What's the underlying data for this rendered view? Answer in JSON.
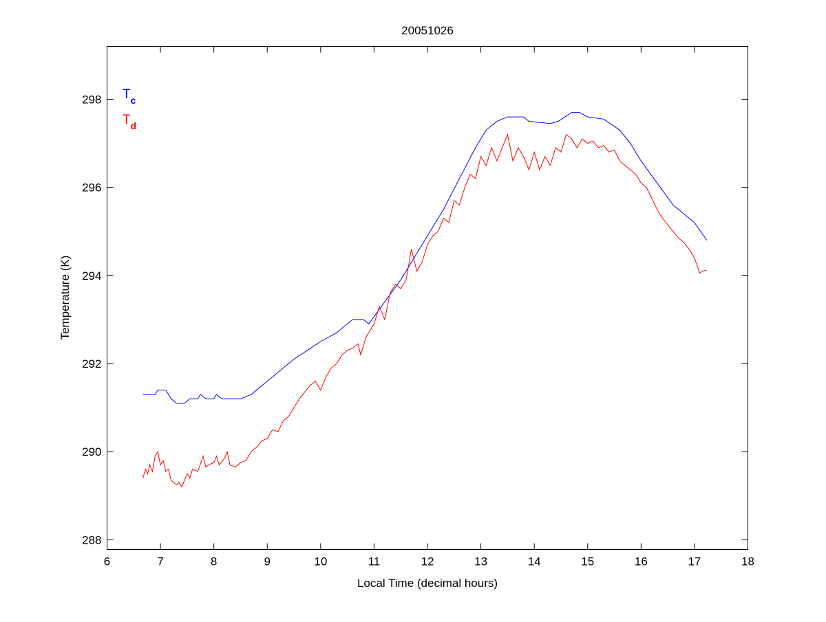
{
  "chart_data": {
    "type": "line",
    "title": "20051026",
    "xlabel": "Local Time (decimal hours)",
    "ylabel": "Temperature (K)",
    "xlim": [
      6,
      18
    ],
    "ylim": [
      287.78,
      299.2
    ],
    "xticks": [
      6,
      7,
      8,
      9,
      10,
      11,
      12,
      13,
      14,
      15,
      16,
      17,
      18
    ],
    "yticks": [
      288,
      290,
      292,
      294,
      296,
      298
    ],
    "grid": false,
    "legend_position": "top-left",
    "series": [
      {
        "name": "T",
        "subscript": "c",
        "color": "#0000ff",
        "points": [
          [
            6.67,
            291.3
          ],
          [
            6.9,
            291.3
          ],
          [
            6.95,
            291.4
          ],
          [
            7.1,
            291.4
          ],
          [
            7.2,
            291.2
          ],
          [
            7.3,
            291.1
          ],
          [
            7.45,
            291.1
          ],
          [
            7.55,
            291.2
          ],
          [
            7.7,
            291.2
          ],
          [
            7.75,
            291.3
          ],
          [
            7.85,
            291.2
          ],
          [
            8.0,
            291.2
          ],
          [
            8.05,
            291.3
          ],
          [
            8.15,
            291.2
          ],
          [
            8.5,
            291.2
          ],
          [
            8.7,
            291.3
          ],
          [
            9.0,
            291.6
          ],
          [
            9.3,
            291.9
          ],
          [
            9.5,
            292.1
          ],
          [
            9.75,
            292.3
          ],
          [
            10.0,
            292.5
          ],
          [
            10.3,
            292.7
          ],
          [
            10.5,
            292.9
          ],
          [
            10.6,
            293.0
          ],
          [
            10.8,
            293.0
          ],
          [
            10.9,
            292.9
          ],
          [
            11.2,
            293.4
          ],
          [
            11.5,
            293.9
          ],
          [
            11.8,
            294.5
          ],
          [
            12.1,
            295.1
          ],
          [
            12.3,
            295.5
          ],
          [
            12.6,
            296.2
          ],
          [
            12.9,
            296.9
          ],
          [
            13.1,
            297.3
          ],
          [
            13.3,
            297.5
          ],
          [
            13.5,
            297.6
          ],
          [
            13.8,
            297.6
          ],
          [
            13.9,
            297.5
          ],
          [
            14.3,
            297.45
          ],
          [
            14.45,
            297.5
          ],
          [
            14.7,
            297.7
          ],
          [
            14.85,
            297.7
          ],
          [
            15.0,
            297.6
          ],
          [
            15.3,
            297.55
          ],
          [
            15.6,
            297.3
          ],
          [
            15.8,
            297.0
          ],
          [
            16.0,
            296.6
          ],
          [
            16.3,
            296.1
          ],
          [
            16.6,
            295.6
          ],
          [
            17.0,
            295.2
          ],
          [
            17.23,
            294.8
          ]
        ]
      },
      {
        "name": "T",
        "subscript": "d",
        "color": "#ff0000",
        "points": [
          [
            6.67,
            289.4
          ],
          [
            6.72,
            289.6
          ],
          [
            6.76,
            289.5
          ],
          [
            6.8,
            289.7
          ],
          [
            6.85,
            289.55
          ],
          [
            6.9,
            289.9
          ],
          [
            6.95,
            290.0
          ],
          [
            7.0,
            289.7
          ],
          [
            7.05,
            289.8
          ],
          [
            7.1,
            289.55
          ],
          [
            7.15,
            289.6
          ],
          [
            7.2,
            289.35
          ],
          [
            7.3,
            289.25
          ],
          [
            7.35,
            289.3
          ],
          [
            7.4,
            289.2
          ],
          [
            7.5,
            289.5
          ],
          [
            7.55,
            289.4
          ],
          [
            7.6,
            289.6
          ],
          [
            7.7,
            289.55
          ],
          [
            7.8,
            289.9
          ],
          [
            7.85,
            289.65
          ],
          [
            7.9,
            289.7
          ],
          [
            8.0,
            289.75
          ],
          [
            8.05,
            289.9
          ],
          [
            8.1,
            289.7
          ],
          [
            8.2,
            289.85
          ],
          [
            8.25,
            290.0
          ],
          [
            8.3,
            289.7
          ],
          [
            8.4,
            289.65
          ],
          [
            8.5,
            289.75
          ],
          [
            8.6,
            289.8
          ],
          [
            8.7,
            290.0
          ],
          [
            8.8,
            290.1
          ],
          [
            8.9,
            290.25
          ],
          [
            9.0,
            290.3
          ],
          [
            9.1,
            290.5
          ],
          [
            9.2,
            290.45
          ],
          [
            9.3,
            290.7
          ],
          [
            9.4,
            290.8
          ],
          [
            9.5,
            291.0
          ],
          [
            9.6,
            291.2
          ],
          [
            9.7,
            291.35
          ],
          [
            9.8,
            291.5
          ],
          [
            9.9,
            291.6
          ],
          [
            10.0,
            291.4
          ],
          [
            10.1,
            291.7
          ],
          [
            10.2,
            291.9
          ],
          [
            10.3,
            292.0
          ],
          [
            10.4,
            292.2
          ],
          [
            10.5,
            292.3
          ],
          [
            10.6,
            292.35
          ],
          [
            10.7,
            292.45
          ],
          [
            10.75,
            292.2
          ],
          [
            10.85,
            292.6
          ],
          [
            11.0,
            292.9
          ],
          [
            11.1,
            293.3
          ],
          [
            11.2,
            293.0
          ],
          [
            11.3,
            293.6
          ],
          [
            11.4,
            293.8
          ],
          [
            11.5,
            293.7
          ],
          [
            11.6,
            293.9
          ],
          [
            11.7,
            294.6
          ],
          [
            11.8,
            294.1
          ],
          [
            11.9,
            294.3
          ],
          [
            12.0,
            294.7
          ],
          [
            12.1,
            294.9
          ],
          [
            12.2,
            295.0
          ],
          [
            12.3,
            295.3
          ],
          [
            12.4,
            295.2
          ],
          [
            12.5,
            295.7
          ],
          [
            12.6,
            295.6
          ],
          [
            12.7,
            296.0
          ],
          [
            12.8,
            296.3
          ],
          [
            12.9,
            296.2
          ],
          [
            13.0,
            296.7
          ],
          [
            13.1,
            296.5
          ],
          [
            13.2,
            296.9
          ],
          [
            13.3,
            296.6
          ],
          [
            13.4,
            296.9
          ],
          [
            13.5,
            297.2
          ],
          [
            13.6,
            296.6
          ],
          [
            13.7,
            296.9
          ],
          [
            13.8,
            296.7
          ],
          [
            13.9,
            296.4
          ],
          [
            14.0,
            296.8
          ],
          [
            14.1,
            296.4
          ],
          [
            14.2,
            296.7
          ],
          [
            14.3,
            296.5
          ],
          [
            14.4,
            296.9
          ],
          [
            14.5,
            296.8
          ],
          [
            14.6,
            297.2
          ],
          [
            14.7,
            297.1
          ],
          [
            14.8,
            296.9
          ],
          [
            14.9,
            297.1
          ],
          [
            15.0,
            297.0
          ],
          [
            15.1,
            297.05
          ],
          [
            15.2,
            296.9
          ],
          [
            15.3,
            296.95
          ],
          [
            15.4,
            296.8
          ],
          [
            15.5,
            296.85
          ],
          [
            15.6,
            296.6
          ],
          [
            15.7,
            296.5
          ],
          [
            15.8,
            296.4
          ],
          [
            15.9,
            296.3
          ],
          [
            16.0,
            296.1
          ],
          [
            16.1,
            296.0
          ],
          [
            16.2,
            295.75
          ],
          [
            16.3,
            295.5
          ],
          [
            16.4,
            295.3
          ],
          [
            16.5,
            295.15
          ],
          [
            16.6,
            295.0
          ],
          [
            16.7,
            294.85
          ],
          [
            16.8,
            294.75
          ],
          [
            16.9,
            294.6
          ],
          [
            17.0,
            294.4
          ],
          [
            17.1,
            294.05
          ],
          [
            17.15,
            294.1
          ],
          [
            17.23,
            294.12
          ]
        ]
      }
    ]
  }
}
